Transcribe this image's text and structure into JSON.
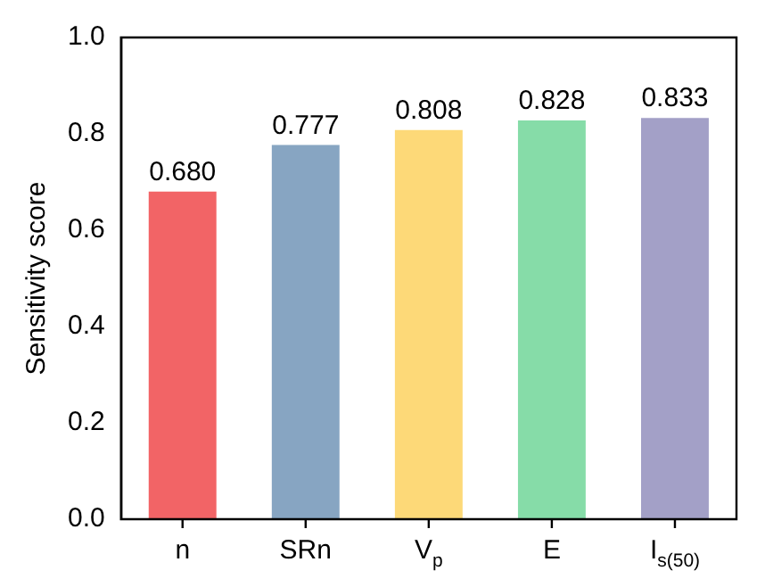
{
  "chart_data": {
    "type": "bar",
    "ylabel": "Sensitivity score",
    "categories": [
      "n",
      "SRn",
      "V$_{p}$",
      "E",
      "I$_{s(50)}$"
    ],
    "values": [
      0.68,
      0.777,
      0.808,
      0.828,
      0.833
    ],
    "value_labels": [
      "0.680",
      "0.777",
      "0.808",
      "0.828",
      "0.833"
    ],
    "colors": [
      "#f26466",
      "#87a5c2",
      "#fdd978",
      "#86dca8",
      "#a3a0c7"
    ],
    "ylim": [
      0,
      1
    ],
    "yticks": [
      {
        "value": 0,
        "label": "0.0"
      },
      {
        "value": 0.2,
        "label": "0.2"
      },
      {
        "value": 0.4,
        "label": "0.4"
      },
      {
        "value": 0.6,
        "label": "0.6"
      },
      {
        "value": 0.8,
        "label": "0.8"
      },
      {
        "value": 1,
        "label": "1.0"
      }
    ],
    "grid": false,
    "legend": false
  }
}
